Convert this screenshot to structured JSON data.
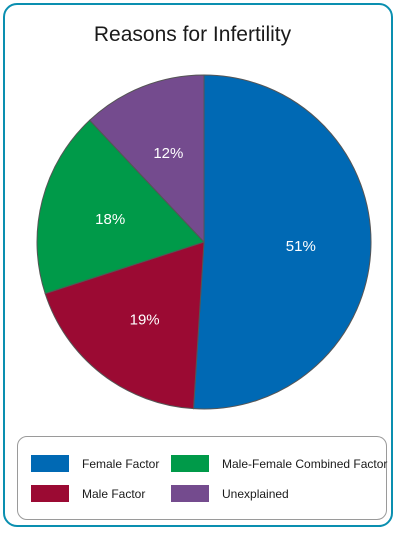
{
  "chart_data": {
    "type": "pie",
    "title": "Reasons for Infertility",
    "slices": [
      {
        "label": "Female Factor",
        "value": 51,
        "display": "51%",
        "color": "#0069b4"
      },
      {
        "label": "Male Factor",
        "value": 19,
        "display": "19%",
        "color": "#9b0a33"
      },
      {
        "label": "Male-Female Combined Factor",
        "value": 18,
        "display": "18%",
        "color": "#009a49"
      },
      {
        "label": "Unexplained",
        "value": 12,
        "display": "12%",
        "color": "#744b8e"
      }
    ],
    "start": "top",
    "direction": "clockwise",
    "legend_position": "bottom"
  }
}
